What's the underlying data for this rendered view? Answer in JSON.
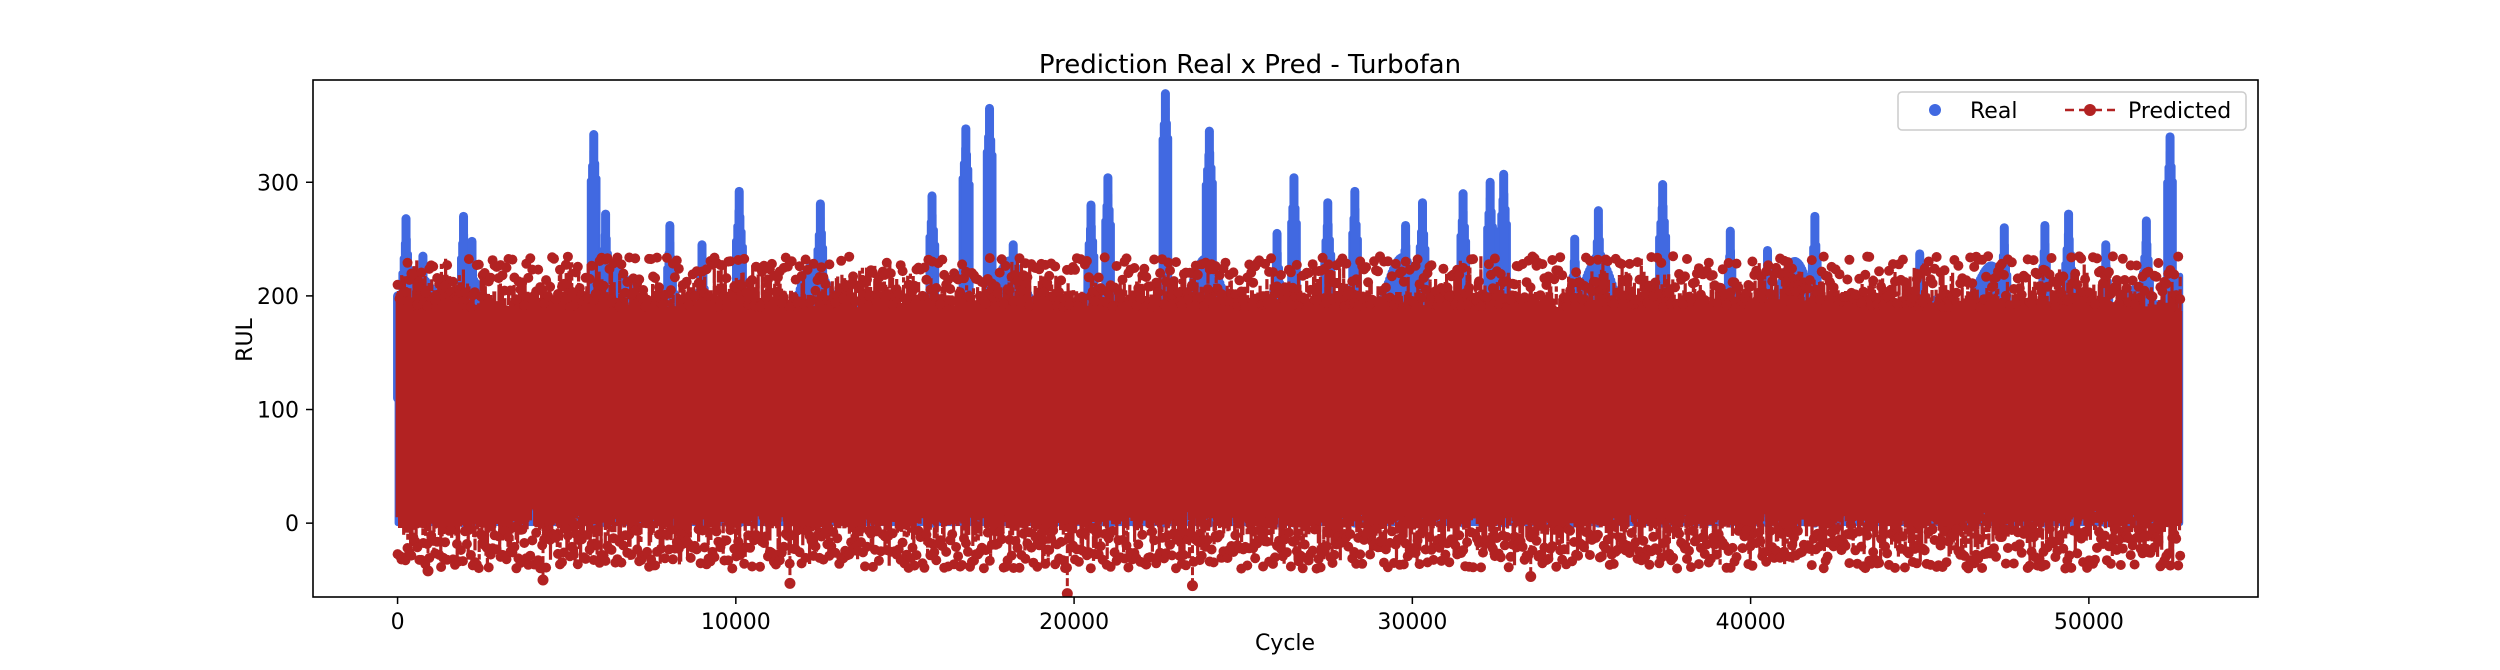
{
  "chart_data": {
    "type": "line",
    "title": "Prediction Real x Pred - Turbofan",
    "xlabel": "Cycle",
    "ylabel": "RUL",
    "xlim": [
      -2500,
      55000
    ],
    "ylim": [
      -65,
      390
    ],
    "xticks": [
      0,
      10000,
      20000,
      30000,
      40000,
      50000
    ],
    "xtick_labels": [
      "0",
      "10000",
      "20000",
      "30000",
      "40000",
      "50000"
    ],
    "yticks": [
      0,
      100,
      200,
      300
    ],
    "ytick_labels": [
      "0",
      "100",
      "200",
      "300"
    ],
    "grid": false,
    "legend": {
      "placement": "top-right",
      "columns": 2
    },
    "x_max": 52700,
    "series": [
      {
        "name": "Real",
        "style": "markers",
        "color": "#4169e1",
        "envelope_min": 0,
        "peaks": [
          {
            "x": 250,
            "y": 268
          },
          {
            "x": 750,
            "y": 235
          },
          {
            "x": 1950,
            "y": 270
          },
          {
            "x": 2200,
            "y": 248
          },
          {
            "x": 5800,
            "y": 342
          },
          {
            "x": 6150,
            "y": 272
          },
          {
            "x": 8050,
            "y": 262
          },
          {
            "x": 9000,
            "y": 245
          },
          {
            "x": 10100,
            "y": 292
          },
          {
            "x": 12500,
            "y": 281
          },
          {
            "x": 15800,
            "y": 288
          },
          {
            "x": 16800,
            "y": 347
          },
          {
            "x": 17500,
            "y": 365
          },
          {
            "x": 18200,
            "y": 245
          },
          {
            "x": 20500,
            "y": 280
          },
          {
            "x": 21000,
            "y": 304
          },
          {
            "x": 22700,
            "y": 378
          },
          {
            "x": 24000,
            "y": 345
          },
          {
            "x": 26000,
            "y": 255
          },
          {
            "x": 26500,
            "y": 304
          },
          {
            "x": 27500,
            "y": 282
          },
          {
            "x": 28300,
            "y": 292
          },
          {
            "x": 29800,
            "y": 262
          },
          {
            "x": 30300,
            "y": 282
          },
          {
            "x": 31500,
            "y": 290
          },
          {
            "x": 32300,
            "y": 300
          },
          {
            "x": 32700,
            "y": 307
          },
          {
            "x": 34800,
            "y": 250
          },
          {
            "x": 35500,
            "y": 275
          },
          {
            "x": 37400,
            "y": 298
          },
          {
            "x": 39400,
            "y": 257
          },
          {
            "x": 40500,
            "y": 240
          },
          {
            "x": 41900,
            "y": 270
          },
          {
            "x": 45000,
            "y": 237
          },
          {
            "x": 47500,
            "y": 260
          },
          {
            "x": 48700,
            "y": 262
          },
          {
            "x": 49400,
            "y": 272
          },
          {
            "x": 50500,
            "y": 245
          },
          {
            "x": 51700,
            "y": 266
          },
          {
            "x": 52400,
            "y": 340
          }
        ]
      },
      {
        "name": "Predicted",
        "style": "dashed line with markers",
        "color": "#b22222",
        "band": [
          -40,
          235
        ],
        "extremes": [
          {
            "x": 19800,
            "y": -62
          },
          {
            "x": 23500,
            "y": -55
          },
          {
            "x": 11600,
            "y": -53
          },
          {
            "x": 4300,
            "y": -50
          },
          {
            "x": 33500,
            "y": -47
          },
          {
            "x": 900,
            "y": -42
          }
        ]
      }
    ]
  }
}
